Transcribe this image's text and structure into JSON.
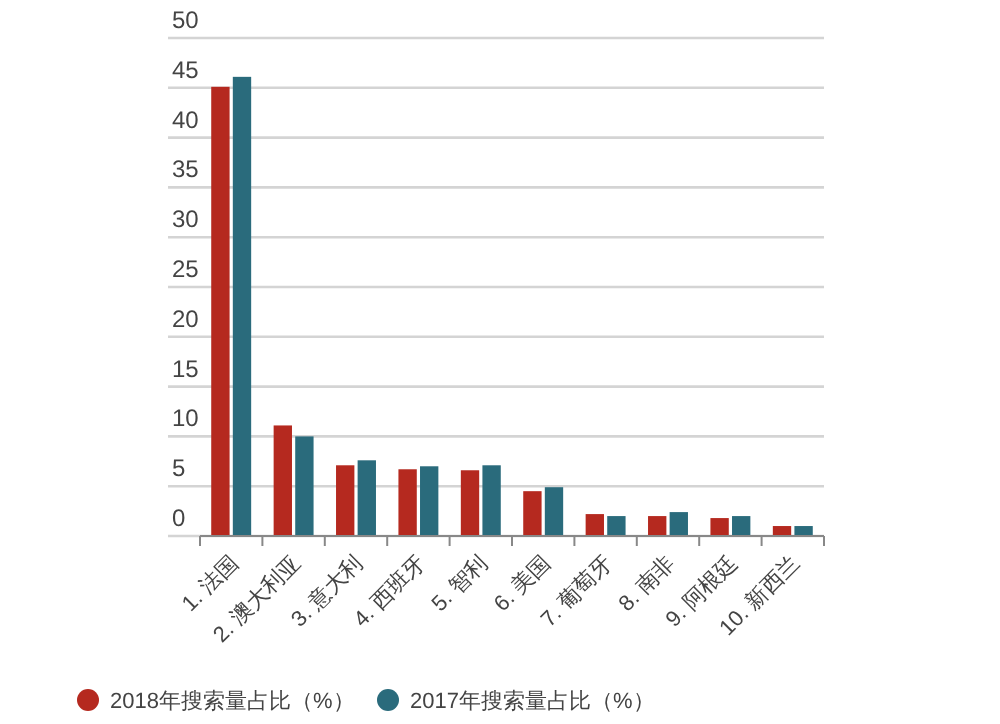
{
  "chart_data": {
    "type": "bar",
    "categories": [
      "1. 法国",
      "2. 澳大利亚",
      "3. 意大利",
      "4. 西班牙",
      "5. 智利",
      "6. 美国",
      "7. 葡萄牙",
      "8. 南非",
      "9. 阿根廷",
      "10. 新西兰"
    ],
    "series": [
      {
        "name": "2018年搜索量占比（%）",
        "color": "#b5291f",
        "values": [
          45.1,
          11.1,
          7.1,
          6.7,
          6.6,
          4.5,
          2.2,
          2.0,
          1.8,
          1.0
        ]
      },
      {
        "name": "2017年搜索量占比（%）",
        "color": "#2a6b7c",
        "values": [
          46.1,
          10.0,
          7.6,
          7.0,
          7.1,
          4.9,
          2.0,
          2.4,
          2.0,
          1.0
        ]
      }
    ],
    "ylim": [
      0,
      50
    ],
    "yticks": [
      0,
      5,
      10,
      15,
      20,
      25,
      30,
      35,
      40,
      45,
      50
    ],
    "grid": "y",
    "legend": "bottom left"
  }
}
